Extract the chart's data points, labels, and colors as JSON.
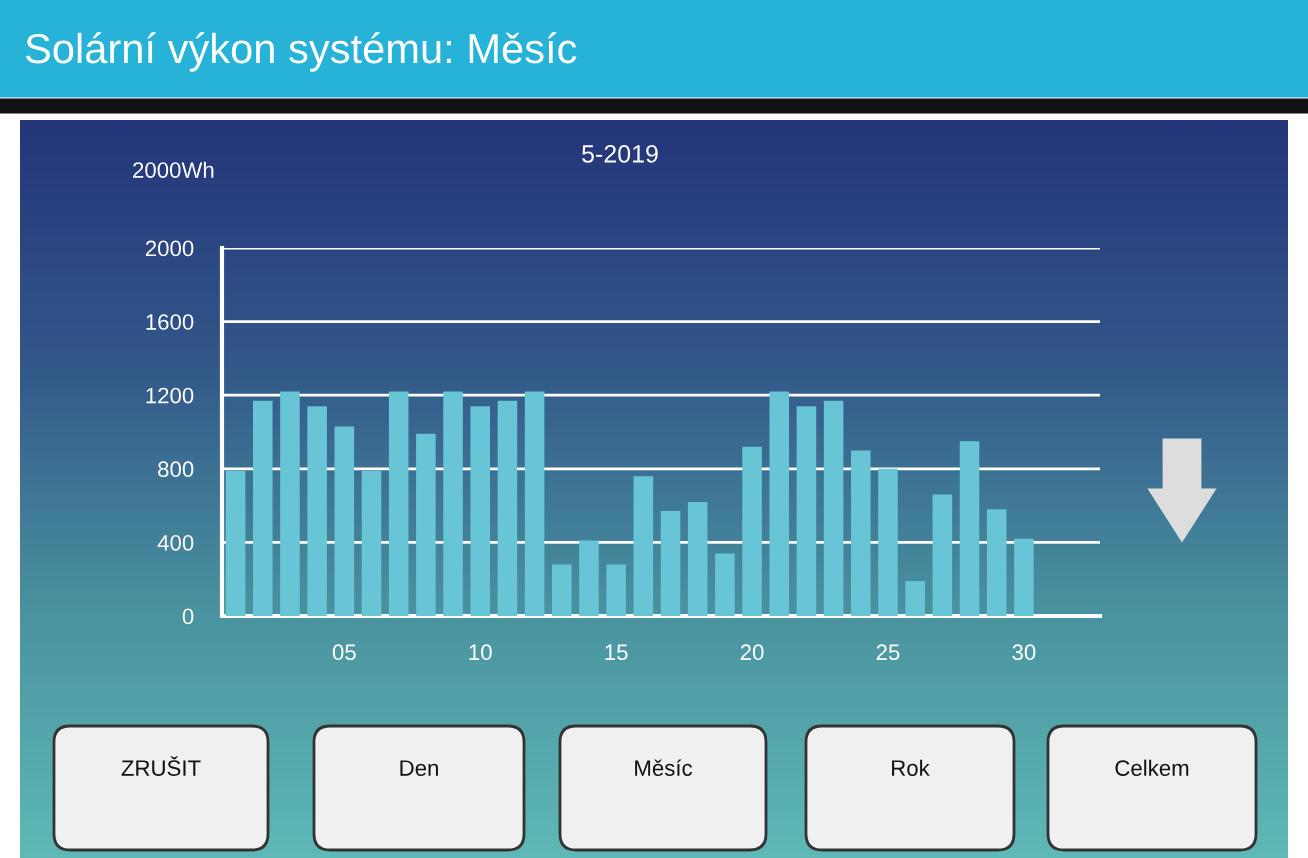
{
  "chart_data": {
    "type": "bar",
    "title": "Solární výkon systému: Měsíc",
    "subtitle": "5-2019",
    "ylabel": "2000Wh",
    "x": [
      1,
      2,
      3,
      4,
      5,
      6,
      7,
      8,
      9,
      10,
      11,
      12,
      13,
      14,
      15,
      16,
      17,
      18,
      19,
      20,
      21,
      22,
      23,
      24,
      25,
      26,
      27,
      28,
      29,
      30
    ],
    "values": [
      790,
      1170,
      1220,
      1140,
      1030,
      790,
      1220,
      990,
      1220,
      1140,
      1170,
      1220,
      280,
      410,
      280,
      760,
      570,
      620,
      340,
      920,
      1220,
      1140,
      1170,
      900,
      800,
      190,
      660,
      950,
      580,
      420
    ],
    "color": "#67c5d6",
    "xlim": [
      0.5,
      32.8
    ],
    "xticks": [
      {
        "value": 5,
        "label": "05"
      },
      10,
      15,
      20,
      25,
      30
    ],
    "ylim": [
      0,
      2000
    ],
    "yticks": [
      0,
      400,
      800,
      1200,
      1600,
      2000
    ],
    "grid": "y",
    "legend": false,
    "annotations": [
      "ZRUŠIT",
      "Den",
      "Měsíc",
      "Rok",
      "Celkem"
    ]
  }
}
